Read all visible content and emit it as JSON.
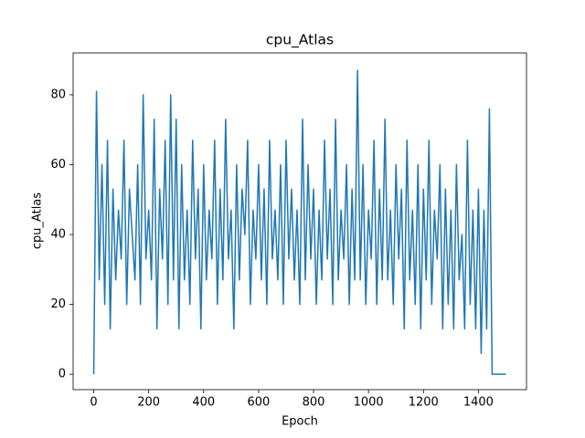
{
  "chart_data": {
    "type": "line",
    "title": "cpu_Atlas",
    "x_label": "Epoch",
    "y_label": "cpu_Atlas",
    "color": "#1f77b4",
    "x": [
      0,
      10,
      20,
      30,
      40,
      50,
      60,
      70,
      80,
      90,
      100,
      110,
      120,
      130,
      140,
      150,
      160,
      170,
      180,
      190,
      200,
      210,
      220,
      230,
      240,
      250,
      260,
      270,
      280,
      290,
      300,
      310,
      320,
      330,
      340,
      350,
      360,
      370,
      380,
      390,
      400,
      410,
      420,
      430,
      440,
      450,
      460,
      470,
      480,
      490,
      500,
      510,
      520,
      530,
      540,
      550,
      560,
      570,
      580,
      590,
      600,
      610,
      620,
      630,
      640,
      650,
      660,
      670,
      680,
      690,
      700,
      710,
      720,
      730,
      740,
      750,
      760,
      770,
      780,
      790,
      800,
      810,
      820,
      830,
      840,
      850,
      860,
      870,
      880,
      890,
      900,
      910,
      920,
      930,
      940,
      950,
      960,
      970,
      980,
      990,
      1000,
      1010,
      1020,
      1030,
      1040,
      1050,
      1060,
      1070,
      1080,
      1090,
      1100,
      1110,
      1120,
      1130,
      1140,
      1150,
      1160,
      1170,
      1180,
      1190,
      1200,
      1210,
      1220,
      1230,
      1240,
      1250,
      1260,
      1270,
      1280,
      1290,
      1300,
      1310,
      1320,
      1330,
      1340,
      1350,
      1360,
      1370,
      1380,
      1390,
      1400,
      1410,
      1420,
      1430,
      1440,
      1450,
      1500
    ],
    "values": [
      0,
      81,
      27,
      60,
      20,
      67,
      13,
      53,
      27,
      47,
      33,
      67,
      20,
      53,
      40,
      27,
      60,
      20,
      80,
      33,
      47,
      27,
      73,
      13,
      53,
      33,
      67,
      20,
      80,
      27,
      73,
      13,
      60,
      27,
      47,
      20,
      67,
      33,
      53,
      13,
      60,
      27,
      47,
      33,
      67,
      20,
      53,
      27,
      73,
      33,
      47,
      13,
      60,
      27,
      53,
      40,
      67,
      20,
      47,
      33,
      60,
      27,
      53,
      20,
      67,
      33,
      47,
      27,
      60,
      20,
      67,
      33,
      53,
      27,
      47,
      20,
      73,
      27,
      60,
      33,
      53,
      20,
      47,
      27,
      67,
      33,
      53,
      20,
      73,
      27,
      47,
      33,
      60,
      20,
      53,
      27,
      87,
      27,
      60,
      20,
      47,
      33,
      67,
      20,
      53,
      27,
      73,
      27,
      47,
      20,
      60,
      33,
      53,
      13,
      67,
      27,
      47,
      20,
      60,
      13,
      53,
      27,
      67,
      20,
      47,
      33,
      60,
      13,
      53,
      20,
      47,
      13,
      60,
      27,
      40,
      13,
      67,
      20,
      47,
      13,
      53,
      6,
      47,
      13,
      76,
      0,
      0
    ],
    "xlim": [
      -75,
      1575
    ],
    "ylim": [
      -4.4,
      92
    ],
    "xticks": [
      0,
      200,
      400,
      600,
      800,
      1000,
      1200,
      1400
    ],
    "yticks": [
      0,
      20,
      40,
      60,
      80
    ],
    "grid": false
  }
}
